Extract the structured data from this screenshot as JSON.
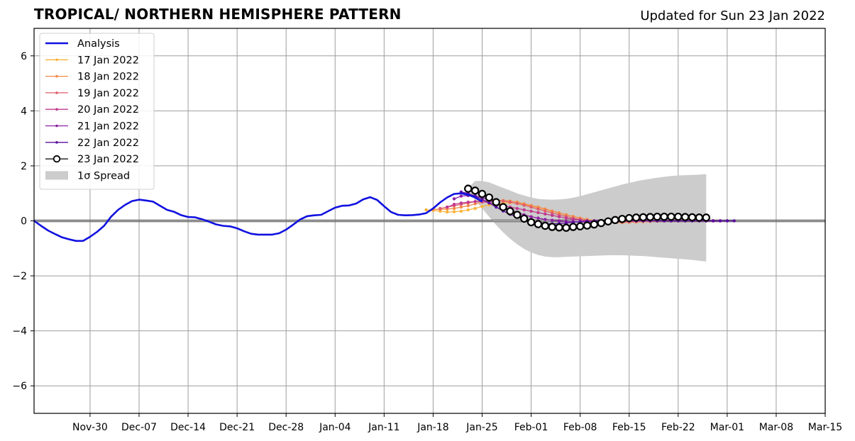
{
  "header": {
    "title": "TROPICAL/ NORTHERN HEMISPHERE PATTERN",
    "updated": "Updated for Sun 23 Jan 2022"
  },
  "chart_data": {
    "type": "line",
    "title": "TROPICAL/ NORTHERN HEMISPHERE PATTERN",
    "xlabel": "",
    "ylabel": "",
    "ylim": [
      -7,
      7
    ],
    "xlim": [
      "2021-11-22",
      "2022-03-15"
    ],
    "yticks": [
      -6,
      -4,
      -2,
      0,
      2,
      4,
      6
    ],
    "ytick_labels": [
      "−6",
      "−4",
      "−2",
      "0",
      "2",
      "4",
      "6"
    ],
    "xticks": [
      "2021-11-30",
      "2021-12-07",
      "2021-12-14",
      "2021-12-21",
      "2021-12-28",
      "2022-01-04",
      "2022-01-11",
      "2022-01-18",
      "2022-01-25",
      "2022-02-01",
      "2022-02-08",
      "2022-02-15",
      "2022-02-22",
      "2022-03-01",
      "2022-03-08",
      "2022-03-15"
    ],
    "xtick_labels": [
      "Nov-30",
      "Dec-07",
      "Dec-14",
      "Dec-21",
      "Dec-28",
      "Jan-04",
      "Jan-11",
      "Jan-18",
      "Jan-25",
      "Feb-01",
      "Feb-08",
      "Feb-15",
      "Feb-22",
      "Mar-01",
      "Mar-08",
      "Mar-15"
    ],
    "grid": true,
    "legend_position": "top-left",
    "colors": {
      "analysis": "#1010e0",
      "f17": "#fbb43a",
      "f18": "#f38a45",
      "f19": "#e05e6c",
      "f20": "#c03a8f",
      "f21": "#8e1fa6",
      "f22": "#5a0fa0",
      "f23": "#000000",
      "spread": "#cccccc"
    },
    "analysis": {
      "name": "Analysis",
      "x": [
        "2021-11-22",
        "2021-11-23",
        "2021-11-24",
        "2021-11-25",
        "2021-11-26",
        "2021-11-27",
        "2021-11-28",
        "2021-11-29",
        "2021-11-30",
        "2021-12-01",
        "2021-12-02",
        "2021-12-03",
        "2021-12-04",
        "2021-12-05",
        "2021-12-06",
        "2021-12-07",
        "2021-12-08",
        "2021-12-09",
        "2021-12-10",
        "2021-12-11",
        "2021-12-12",
        "2021-12-13",
        "2021-12-14",
        "2021-12-15",
        "2021-12-16",
        "2021-12-17",
        "2021-12-18",
        "2021-12-19",
        "2021-12-20",
        "2021-12-21",
        "2021-12-22",
        "2021-12-23",
        "2021-12-24",
        "2021-12-25",
        "2021-12-26",
        "2021-12-27",
        "2021-12-28",
        "2021-12-29",
        "2021-12-30",
        "2021-12-31",
        "2022-01-01",
        "2022-01-02",
        "2022-01-03",
        "2022-01-04",
        "2022-01-05",
        "2022-01-06",
        "2022-01-07",
        "2022-01-08",
        "2022-01-09",
        "2022-01-10",
        "2022-01-11",
        "2022-01-12",
        "2022-01-13",
        "2022-01-14",
        "2022-01-15",
        "2022-01-16",
        "2022-01-17",
        "2022-01-18",
        "2022-01-19",
        "2022-01-20",
        "2022-01-21",
        "2022-01-22",
        "2022-01-23",
        "2022-01-24",
        "2022-01-25"
      ],
      "y": [
        0.0,
        -0.18,
        -0.35,
        -0.48,
        -0.6,
        -0.67,
        -0.73,
        -0.73,
        -0.58,
        -0.4,
        -0.18,
        0.15,
        0.4,
        0.58,
        0.72,
        0.77,
        0.74,
        0.7,
        0.55,
        0.4,
        0.33,
        0.21,
        0.14,
        0.13,
        0.06,
        -0.03,
        -0.13,
        -0.18,
        -0.2,
        -0.27,
        -0.38,
        -0.47,
        -0.5,
        -0.5,
        -0.5,
        -0.45,
        -0.32,
        -0.14,
        0.05,
        0.17,
        0.2,
        0.22,
        0.35,
        0.48,
        0.55,
        0.56,
        0.63,
        0.78,
        0.86,
        0.76,
        0.53,
        0.32,
        0.22,
        0.2,
        0.21,
        0.23,
        0.28,
        0.45,
        0.67,
        0.85,
        0.98,
        1.0,
        0.95,
        0.85,
        0.7
      ]
    },
    "forecasts": [
      {
        "name": "17 Jan 2022",
        "color_key": "f17",
        "start": "2022-01-17",
        "x0": 17,
        "y": [
          0.4,
          0.38,
          0.35,
          0.32,
          0.33,
          0.35,
          0.4,
          0.45,
          0.52,
          0.58,
          0.62,
          0.65,
          0.66,
          0.64,
          0.6,
          0.55,
          0.48,
          0.42,
          0.35,
          0.28,
          0.22,
          0.16,
          0.1,
          0.05,
          0.0,
          -0.03,
          -0.05,
          -0.06,
          -0.06,
          -0.05,
          -0.04,
          -0.03,
          -0.02,
          -0.01,
          0.0,
          0.0,
          0.0,
          0.0,
          0.0,
          0.0
        ]
      },
      {
        "name": "18 Jan 2022",
        "color_key": "f18",
        "start": "2022-01-18",
        "x0": 18,
        "y": [
          0.42,
          0.42,
          0.43,
          0.45,
          0.5,
          0.55,
          0.62,
          0.68,
          0.72,
          0.74,
          0.74,
          0.72,
          0.68,
          0.62,
          0.56,
          0.5,
          0.43,
          0.36,
          0.29,
          0.22,
          0.16,
          0.1,
          0.05,
          0.01,
          -0.03,
          -0.05,
          -0.06,
          -0.06,
          -0.05,
          -0.04,
          -0.03,
          -0.02,
          -0.01,
          0.0,
          0.0,
          0.0,
          0.0,
          0.0,
          0.0,
          0.0
        ]
      },
      {
        "name": "19 Jan 2022",
        "color_key": "f19",
        "start": "2022-01-19",
        "x0": 19,
        "y": [
          0.45,
          0.5,
          0.55,
          0.6,
          0.65,
          0.7,
          0.72,
          0.74,
          0.74,
          0.72,
          0.68,
          0.63,
          0.57,
          0.5,
          0.43,
          0.36,
          0.29,
          0.22,
          0.16,
          0.1,
          0.05,
          0.01,
          -0.02,
          -0.04,
          -0.05,
          -0.05,
          -0.04,
          -0.03,
          -0.02,
          -0.01,
          0.0,
          0.0,
          0.0,
          0.0,
          0.0,
          0.0,
          0.0,
          0.0,
          0.0,
          0.0
        ]
      },
      {
        "name": "20 Jan 2022",
        "color_key": "f20",
        "start": "2022-01-20",
        "x0": 20,
        "y": [
          0.5,
          0.6,
          0.65,
          0.68,
          0.7,
          0.7,
          0.66,
          0.6,
          0.55,
          0.5,
          0.45,
          0.4,
          0.35,
          0.3,
          0.25,
          0.2,
          0.15,
          0.1,
          0.06,
          0.03,
          0.0,
          -0.02,
          -0.03,
          -0.03,
          -0.03,
          -0.02,
          -0.01,
          0.0,
          0.0,
          0.0,
          0.0,
          0.0,
          0.0,
          0.0,
          0.0,
          0.0,
          0.0,
          0.0,
          0.0,
          0.0
        ]
      },
      {
        "name": "21 Jan 2022",
        "color_key": "f21",
        "start": "2022-01-21",
        "x0": 21,
        "y": [
          0.8,
          0.9,
          0.92,
          0.9,
          0.85,
          0.75,
          0.62,
          0.5,
          0.4,
          0.3,
          0.22,
          0.15,
          0.1,
          0.05,
          0.02,
          0.0,
          -0.02,
          -0.03,
          -0.04,
          -0.04,
          -0.03,
          -0.02,
          -0.01,
          0.0,
          0.0,
          0.0,
          0.0,
          0.0,
          0.0,
          0.0,
          0.0,
          0.0,
          0.0,
          0.0,
          0.0,
          0.0,
          0.0,
          0.0,
          0.0,
          0.0
        ]
      },
      {
        "name": "22 Jan 2022",
        "color_key": "f22",
        "start": "2022-01-22",
        "x0": 22,
        "y": [
          1.05,
          1.0,
          0.9,
          0.78,
          0.65,
          0.5,
          0.36,
          0.24,
          0.14,
          0.05,
          -0.02,
          -0.07,
          -0.1,
          -0.11,
          -0.1,
          -0.08,
          -0.05,
          -0.03,
          -0.01,
          0.0,
          0.01,
          0.01,
          0.01,
          0.01,
          0.0,
          0.0,
          0.0,
          0.0,
          0.0,
          0.0,
          0.0,
          0.0,
          0.0,
          0.0,
          0.0,
          0.0,
          0.0,
          0.0,
          0.0,
          0.0
        ]
      }
    ],
    "latest": {
      "name": "23 Jan 2022",
      "start": "2022-01-23",
      "y": [
        1.17,
        1.1,
        0.98,
        0.85,
        0.68,
        0.5,
        0.35,
        0.22,
        0.08,
        -0.05,
        -0.12,
        -0.18,
        -0.22,
        -0.24,
        -0.25,
        -0.22,
        -0.2,
        -0.17,
        -0.13,
        -0.08,
        -0.02,
        0.03,
        0.07,
        0.1,
        0.12,
        0.13,
        0.14,
        0.15,
        0.15,
        0.15,
        0.15,
        0.14,
        0.13,
        0.12,
        0.12
      ]
    },
    "spread": {
      "name": "1σ Spread",
      "start": "2022-01-23",
      "upper": [
        1.2,
        1.45,
        1.45,
        1.4,
        1.3,
        1.2,
        1.1,
        1.0,
        0.92,
        0.85,
        0.8,
        0.78,
        0.77,
        0.78,
        0.8,
        0.84,
        0.9,
        0.97,
        1.04,
        1.11,
        1.18,
        1.25,
        1.32,
        1.38,
        1.44,
        1.49,
        1.53,
        1.57,
        1.6,
        1.63,
        1.65,
        1.66,
        1.67,
        1.68,
        1.7
      ],
      "lower": [
        1.1,
        0.75,
        0.45,
        0.15,
        -0.15,
        -0.42,
        -0.65,
        -0.85,
        -1.02,
        -1.15,
        -1.24,
        -1.3,
        -1.32,
        -1.32,
        -1.31,
        -1.3,
        -1.29,
        -1.28,
        -1.27,
        -1.26,
        -1.25,
        -1.25,
        -1.25,
        -1.26,
        -1.27,
        -1.28,
        -1.3,
        -1.32,
        -1.34,
        -1.36,
        -1.38,
        -1.4,
        -1.42,
        -1.45,
        -1.48
      ]
    },
    "legend": [
      "Analysis",
      "17 Jan 2022",
      "18 Jan 2022",
      "19 Jan 2022",
      "20 Jan 2022",
      "21 Jan 2022",
      "22 Jan 2022",
      "23 Jan 2022",
      "1σ Spread"
    ]
  }
}
